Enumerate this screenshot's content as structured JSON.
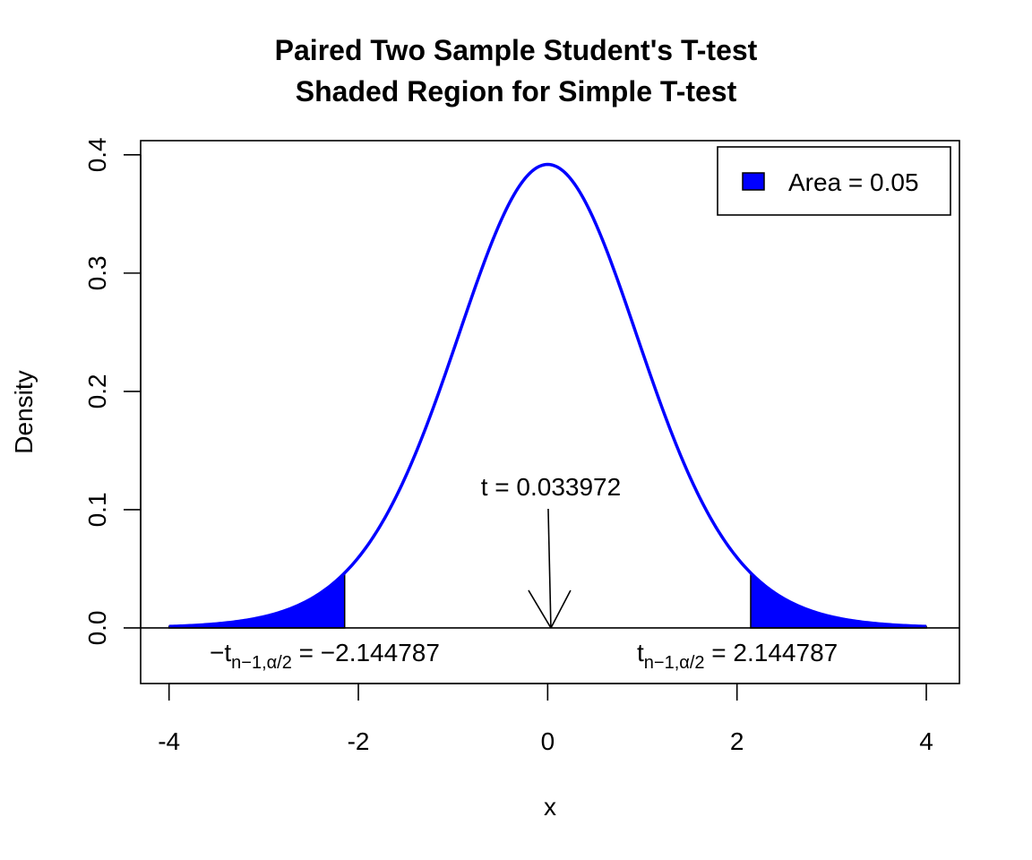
{
  "chart_data": {
    "type": "line",
    "title_lines": [
      "Paired Two Sample Student's T-test",
      "Shaded Region for Simple T-test"
    ],
    "xlabel": "x",
    "ylabel": "Density",
    "xlim": [
      -4.3,
      4.35
    ],
    "ylim": [
      -0.047,
      0.412
    ],
    "x_ticks": [
      -4,
      -2,
      0,
      2,
      4
    ],
    "x_tick_labels": [
      "-4",
      "-2",
      "0",
      "2",
      "4"
    ],
    "y_ticks": [
      0.0,
      0.1,
      0.2,
      0.3,
      0.4
    ],
    "y_tick_labels": [
      "0.0",
      "0.1",
      "0.2",
      "0.3",
      "0.4"
    ],
    "grid": false,
    "legend_position": "top-right",
    "legend": {
      "label": "Area = 0.05",
      "color": "#0000ff"
    },
    "curve": {
      "distribution": "student-t",
      "df": 14,
      "x_range": [
        -4,
        4
      ],
      "color": "#0000ff"
    },
    "shaded_regions": [
      {
        "from": -4,
        "to": -2.144787,
        "color": "#0000ff"
      },
      {
        "from": 2.144787,
        "to": 4,
        "color": "#0000ff"
      }
    ],
    "critical_values": {
      "lower": {
        "x": -2.144787,
        "prefix": "−t",
        "subscript": "n−1,α/2",
        "value_text": "= −2.144787"
      },
      "upper": {
        "x": 2.144787,
        "prefix": "t",
        "subscript": "n−1,α/2",
        "value_text": "= 2.144787"
      }
    },
    "test_statistic": {
      "x": 0.033972,
      "label": "t = 0.033972"
    },
    "baseline_y": 0
  }
}
